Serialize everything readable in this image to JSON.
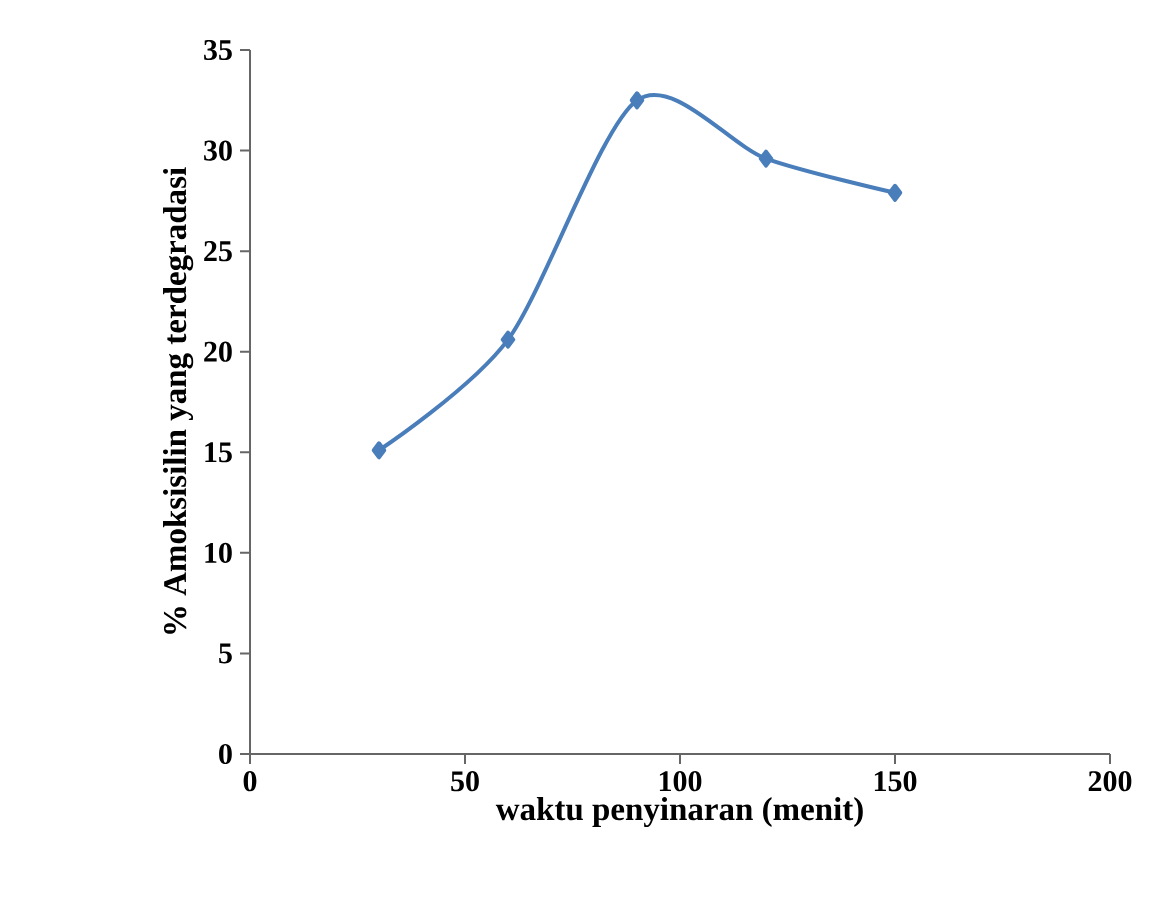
{
  "chart_data": {
    "type": "line",
    "xlabel": "waktu penyinaran (menit)",
    "ylabel": "% Amoksisilin yang terdegradasi",
    "x": [
      30,
      60,
      90,
      120,
      150
    ],
    "series": [
      {
        "color": "#4a7ebb",
        "values": [
          15.1,
          20.6,
          32.5,
          29.6,
          27.9
        ]
      }
    ],
    "xlim": [
      0,
      200
    ],
    "xticks": [
      0,
      50,
      100,
      150,
      200
    ],
    "ylim": [
      0,
      35
    ],
    "yticks": [
      0,
      5,
      10,
      15,
      20,
      25,
      30,
      35
    ],
    "marker": "diamond",
    "line_style": "solid",
    "grid": false
  }
}
